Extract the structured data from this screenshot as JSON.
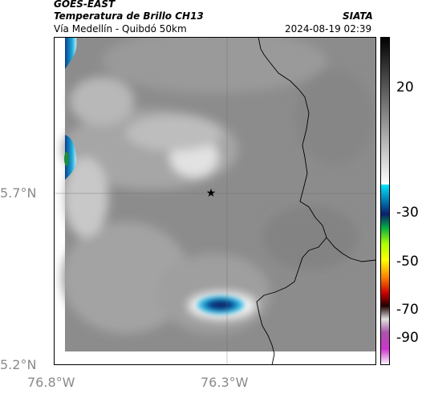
{
  "header": {
    "satellite": "GOES-EAST",
    "product": "Temperatura de Brillo CH13",
    "region": "Vía Medellín - Quibdó 50km",
    "brand": "SIATA",
    "datetime": "2024-08-19 02:39"
  },
  "axes": {
    "x_ticks": [
      "76.8°W",
      "76.3°W"
    ],
    "y_ticks": [
      "5.7°N",
      "5.2°N"
    ]
  },
  "colorbar": {
    "ticks": [
      "20",
      "-30",
      "-50",
      "-70",
      "-90"
    ]
  },
  "colors": {
    "cold_core": "#0a2a70",
    "cyan": "#1aa8d8",
    "land_gray": "#8c8c8c"
  },
  "icons": {
    "marker": "star-icon"
  }
}
